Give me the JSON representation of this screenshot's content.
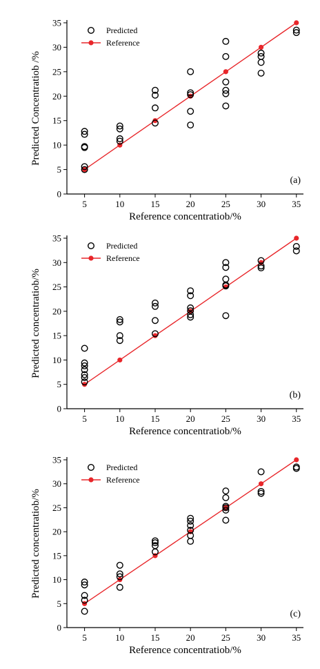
{
  "chart_data": [
    {
      "type": "scatter",
      "panel_label": "(a)",
      "xlabel": "Reference concentratiob/%",
      "ylabel": "Predicted Concentratiob /%",
      "xlim": [
        2.5,
        36
      ],
      "ylim": [
        0,
        35
      ],
      "xticks": [
        "5",
        "10",
        "15",
        "20",
        "25",
        "30",
        "35"
      ],
      "yticks": [
        "0",
        "5",
        "10",
        "15",
        "20",
        "25",
        "30",
        "35"
      ],
      "legend": {
        "placement": "top-left",
        "entries": [
          "Predicted",
          "Reference"
        ]
      },
      "grid": false,
      "series": [
        {
          "name": "Predicted",
          "marker": "open-circle",
          "color": "#000000",
          "points": [
            [
              5,
              12.8
            ],
            [
              5,
              12.2
            ],
            [
              5,
              9.7
            ],
            [
              5,
              9.5
            ],
            [
              5,
              5.6
            ],
            [
              5,
              5.0
            ],
            [
              10,
              13.9
            ],
            [
              10,
              13.3
            ],
            [
              10,
              11.3
            ],
            [
              10,
              10.8
            ],
            [
              15,
              21.2
            ],
            [
              15,
              20.2
            ],
            [
              15,
              17.6
            ],
            [
              15,
              14.5
            ],
            [
              20,
              25.0
            ],
            [
              20,
              20.7
            ],
            [
              20,
              20.3
            ],
            [
              20,
              16.9
            ],
            [
              20,
              14.1
            ],
            [
              25,
              31.2
            ],
            [
              25,
              28.1
            ],
            [
              25,
              22.9
            ],
            [
              25,
              21.2
            ],
            [
              25,
              20.5
            ],
            [
              25,
              18.0
            ],
            [
              30,
              28.8
            ],
            [
              30,
              28.1
            ],
            [
              30,
              26.9
            ],
            [
              30,
              24.7
            ],
            [
              35,
              33.5
            ],
            [
              35,
              33.0
            ]
          ]
        },
        {
          "name": "Reference",
          "marker": "filled-circle-line",
          "color": "#e8262a",
          "points": [
            [
              5,
              5
            ],
            [
              10,
              10
            ],
            [
              15,
              15
            ],
            [
              20,
              20
            ],
            [
              25,
              25
            ],
            [
              30,
              30
            ],
            [
              35,
              35
            ]
          ]
        }
      ]
    },
    {
      "type": "scatter",
      "panel_label": "(b)",
      "xlabel": "Reference concentratiob/%",
      "ylabel": "Predicted concentratiob/%",
      "xlim": [
        2.5,
        36
      ],
      "ylim": [
        0,
        35
      ],
      "xticks": [
        "5",
        "10",
        "15",
        "20",
        "25",
        "30",
        "35"
      ],
      "yticks": [
        "0",
        "5",
        "10",
        "15",
        "20",
        "25",
        "30",
        "35"
      ],
      "legend": {
        "placement": "top-left",
        "entries": [
          "Predicted",
          "Reference"
        ]
      },
      "grid": false,
      "series": [
        {
          "name": "Predicted",
          "marker": "open-circle",
          "color": "#000000",
          "points": [
            [
              5,
              12.4
            ],
            [
              5,
              9.4
            ],
            [
              5,
              8.8
            ],
            [
              5,
              8.0
            ],
            [
              5,
              7.0
            ],
            [
              5,
              6.4
            ],
            [
              5,
              5.5
            ],
            [
              10,
              18.3
            ],
            [
              10,
              17.8
            ],
            [
              10,
              15.0
            ],
            [
              10,
              14.0
            ],
            [
              15,
              21.7
            ],
            [
              15,
              21.0
            ],
            [
              15,
              18.1
            ],
            [
              15,
              15.4
            ],
            [
              20,
              24.2
            ],
            [
              20,
              23.2
            ],
            [
              20,
              20.7
            ],
            [
              20,
              20.1
            ],
            [
              20,
              19.3
            ],
            [
              20,
              18.8
            ],
            [
              25,
              30.0
            ],
            [
              25,
              29.0
            ],
            [
              25,
              26.6
            ],
            [
              25,
              25.4
            ],
            [
              25,
              25.2
            ],
            [
              25,
              19.1
            ],
            [
              30,
              30.4
            ],
            [
              30,
              29.3
            ],
            [
              30,
              28.9
            ],
            [
              35,
              33.3
            ],
            [
              35,
              32.4
            ]
          ]
        },
        {
          "name": "Reference",
          "marker": "filled-circle-line",
          "color": "#e8262a",
          "points": [
            [
              5,
              5
            ],
            [
              10,
              10
            ],
            [
              15,
              15
            ],
            [
              20,
              20
            ],
            [
              25,
              25
            ],
            [
              30,
              30
            ],
            [
              35,
              35
            ]
          ]
        }
      ]
    },
    {
      "type": "scatter",
      "panel_label": "(c)",
      "xlabel": "Reference concentratiob/%",
      "ylabel": "Predicted concentratiob/%",
      "xlim": [
        2.5,
        36
      ],
      "ylim": [
        0,
        35
      ],
      "xticks": [
        "5",
        "10",
        "15",
        "20",
        "25",
        "30",
        "35"
      ],
      "yticks": [
        "0",
        "5",
        "10",
        "15",
        "20",
        "25",
        "30",
        "35"
      ],
      "legend": {
        "placement": "top-left",
        "entries": [
          "Predicted",
          "Reference"
        ]
      },
      "grid": false,
      "series": [
        {
          "name": "Predicted",
          "marker": "open-circle",
          "color": "#000000",
          "points": [
            [
              5,
              9.5
            ],
            [
              5,
              8.9
            ],
            [
              5,
              6.7
            ],
            [
              5,
              5.7
            ],
            [
              5,
              3.4
            ],
            [
              10,
              13.0
            ],
            [
              10,
              11.2
            ],
            [
              10,
              10.6
            ],
            [
              10,
              8.4
            ],
            [
              15,
              18.1
            ],
            [
              15,
              17.7
            ],
            [
              15,
              17.1
            ],
            [
              15,
              15.8
            ],
            [
              20,
              22.8
            ],
            [
              20,
              22.2
            ],
            [
              20,
              21.3
            ],
            [
              20,
              20.3
            ],
            [
              20,
              19.2
            ],
            [
              20,
              18.0
            ],
            [
              25,
              28.5
            ],
            [
              25,
              27.1
            ],
            [
              25,
              25.3
            ],
            [
              25,
              25.0
            ],
            [
              25,
              24.5
            ],
            [
              25,
              22.4
            ],
            [
              30,
              32.5
            ],
            [
              30,
              28.4
            ],
            [
              30,
              28.0
            ],
            [
              35,
              33.5
            ],
            [
              35,
              33.2
            ]
          ]
        },
        {
          "name": "Reference",
          "marker": "filled-circle-line",
          "color": "#e8262a",
          "points": [
            [
              5,
              5
            ],
            [
              10,
              10
            ],
            [
              15,
              15
            ],
            [
              20,
              20
            ],
            [
              25,
              25
            ],
            [
              30,
              30
            ],
            [
              35,
              35
            ]
          ]
        }
      ]
    }
  ]
}
